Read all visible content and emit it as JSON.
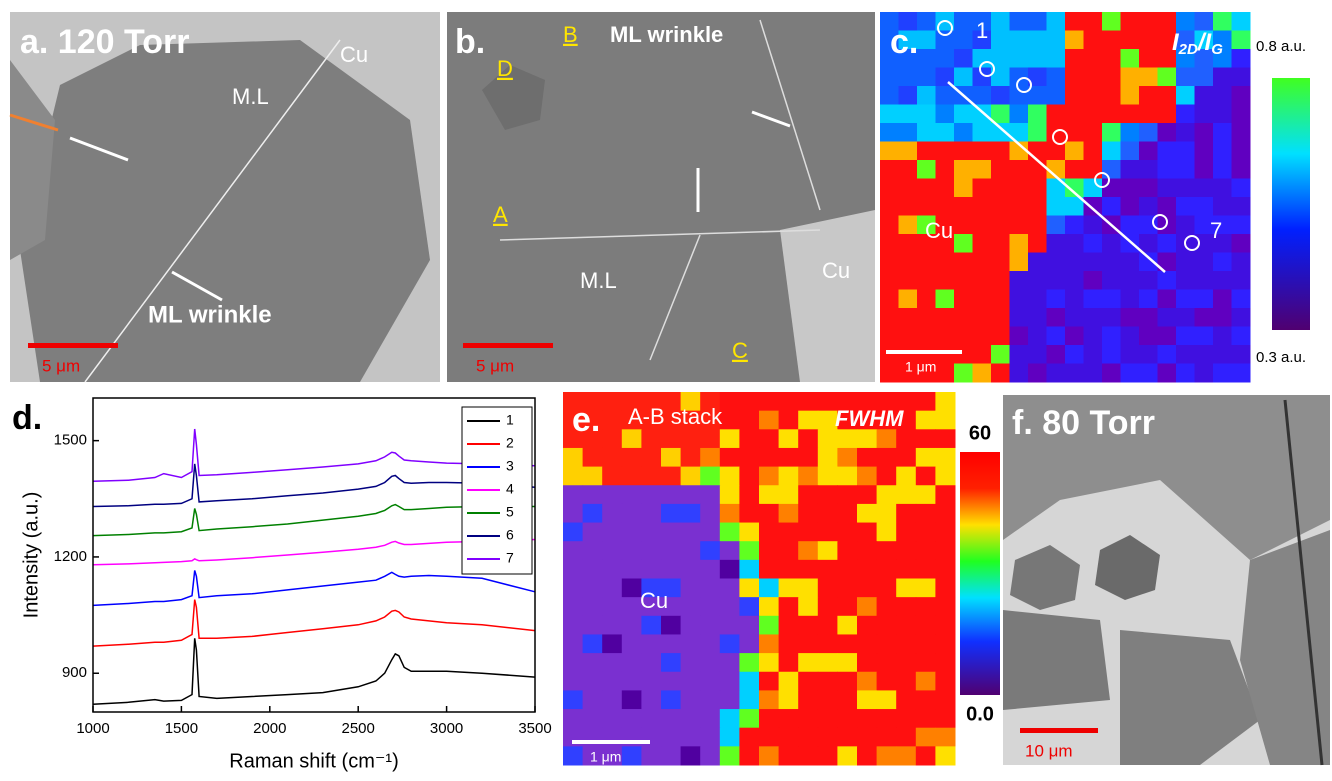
{
  "panels": {
    "a": {
      "label": "a. 120 Torr",
      "cu": "Cu",
      "ml": "M.L",
      "wrinkle": "ML wrinkle",
      "scale": "5 μm"
    },
    "b": {
      "label": "b.",
      "A": "A",
      "B": "B",
      "C": "C",
      "D": "D",
      "wrinkle": "ML wrinkle",
      "ml": "M.L",
      "cu": "Cu",
      "scale": "5 μm"
    },
    "c": {
      "label": "c.",
      "title": [
        "I",
        "2D",
        "/I",
        "G"
      ],
      "p1": "1",
      "p7": "7",
      "cu": "Cu",
      "cbar_top": "0.8 a.u.",
      "cbar_bottom": "0.3 a.u.",
      "scale": "1 μm"
    },
    "d": {
      "label": "d."
    },
    "e": {
      "label": "e.",
      "stack": "A-B stack",
      "title": "FWHM",
      "cu": "Cu",
      "cbar_top": "60",
      "cbar_bottom": "0.0",
      "scale": "1 μm"
    },
    "f": {
      "label": "f. 80 Torr",
      "scale": "10 μm"
    }
  },
  "chart_data": {
    "type": "line",
    "xlabel": "Raman shift (cm⁻¹)",
    "ylabel": "Intensity (a.u.)",
    "x": [
      1000,
      1200,
      1350,
      1400,
      1500,
      1560,
      1575,
      1585,
      1600,
      1700,
      1900,
      2100,
      2300,
      2500,
      2600,
      2650,
      2690,
      2710,
      2730,
      2760,
      2800,
      2900,
      3000,
      3200,
      3500
    ],
    "xlim": [
      1000,
      3500
    ],
    "xticks": [
      1000,
      1500,
      2000,
      2500,
      3000,
      3500
    ],
    "ylim": [
      800,
      1610
    ],
    "yticks": [
      900,
      1200,
      1500
    ],
    "series": [
      {
        "name": "1",
        "color": "#000000",
        "values": [
          820,
          825,
          832,
          828,
          830,
          845,
          990,
          960,
          840,
          835,
          840,
          845,
          850,
          865,
          880,
          900,
          935,
          950,
          945,
          915,
          905,
          905,
          905,
          900,
          890
        ]
      },
      {
        "name": "2",
        "color": "#ff0000",
        "values": [
          970,
          975,
          980,
          980,
          985,
          1000,
          1090,
          1070,
          990,
          990,
          995,
          1005,
          1015,
          1025,
          1035,
          1045,
          1060,
          1062,
          1058,
          1045,
          1040,
          1035,
          1030,
          1025,
          1010
        ]
      },
      {
        "name": "3",
        "color": "#0000ff",
        "values": [
          1075,
          1080,
          1085,
          1085,
          1090,
          1100,
          1165,
          1150,
          1095,
          1100,
          1105,
          1115,
          1125,
          1135,
          1140,
          1150,
          1160,
          1155,
          1150,
          1148,
          1150,
          1152,
          1150,
          1145,
          1110
        ]
      },
      {
        "name": "4",
        "color": "#ff00ff",
        "values": [
          1180,
          1182,
          1185,
          1186,
          1188,
          1190,
          1195,
          1193,
          1190,
          1192,
          1198,
          1205,
          1212,
          1220,
          1225,
          1230,
          1238,
          1240,
          1236,
          1232,
          1232,
          1235,
          1238,
          1240,
          1245
        ]
      },
      {
        "name": "5",
        "color": "#008000",
        "values": [
          1255,
          1258,
          1262,
          1262,
          1265,
          1275,
          1325,
          1310,
          1268,
          1272,
          1278,
          1285,
          1295,
          1305,
          1312,
          1320,
          1332,
          1335,
          1330,
          1322,
          1322,
          1325,
          1328,
          1330,
          1330
        ]
      },
      {
        "name": "6",
        "color": "#000080",
        "values": [
          1330,
          1332,
          1336,
          1336,
          1338,
          1350,
          1440,
          1410,
          1342,
          1345,
          1350,
          1358,
          1365,
          1375,
          1382,
          1392,
          1408,
          1410,
          1402,
          1392,
          1390,
          1392,
          1392,
          1390,
          1380
        ]
      },
      {
        "name": "7",
        "color": "#8000ff",
        "values": [
          1395,
          1398,
          1405,
          1415,
          1405,
          1420,
          1530,
          1490,
          1410,
          1412,
          1418,
          1425,
          1432,
          1440,
          1448,
          1458,
          1470,
          1468,
          1460,
          1450,
          1448,
          1445,
          1442,
          1440,
          1435
        ]
      }
    ],
    "legend": "upper right"
  }
}
